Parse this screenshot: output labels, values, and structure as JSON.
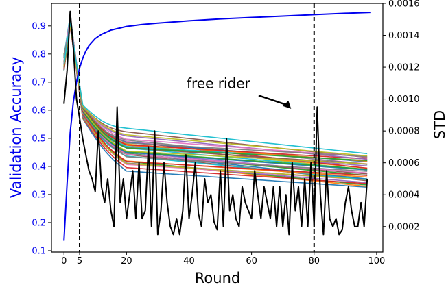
{
  "chart_data": {
    "type": "line",
    "xlabel": "Round",
    "ylabel_left": "Validation Accuracy",
    "ylabel_right": "STD",
    "xlim": [
      -4,
      102
    ],
    "ylim_left": [
      0.095,
      0.98
    ],
    "ylim_right": [
      4e-05,
      0.0016
    ],
    "x_ticks": [
      0,
      5,
      20,
      40,
      60,
      80,
      100
    ],
    "x_tick_labels": [
      "0",
      "5",
      "20",
      "40",
      "60",
      "80",
      "100"
    ],
    "y_left_ticks": [
      0.1,
      0.2,
      0.3,
      0.4,
      0.5,
      0.6,
      0.7,
      0.8,
      0.9
    ],
    "y_left_tick_labels": [
      "0.1",
      "0.2",
      "0.3",
      "0.4",
      "0.5",
      "0.6",
      "0.7",
      "0.8",
      "0.9"
    ],
    "y_right_ticks": [
      0.0002,
      0.0004,
      0.0006,
      0.0008,
      0.001,
      0.0012,
      0.0014,
      0.0016
    ],
    "y_right_tick_labels": [
      "0.0002",
      "0.0004",
      "0.0006",
      "0.0008",
      "0.0010",
      "0.0012",
      "0.0014",
      "0.0016"
    ],
    "vlines": [
      5,
      80
    ],
    "annotation": {
      "text": "free rider",
      "x": 48,
      "y": 0.0011,
      "arrow_to": [
        72,
        0.00096
      ]
    },
    "grid": false,
    "colors": {
      "validation_accuracy": "#0000ee",
      "std": "#000000",
      "left_axis_text": "#0000ee",
      "client_palette": [
        "#1f77b4",
        "#ff7f0e",
        "#2ca02c",
        "#d62728",
        "#9467bd",
        "#8c564b",
        "#e377c2",
        "#7f7f7f",
        "#bcbd22",
        "#17becf"
      ]
    },
    "series": [
      {
        "axis": "left",
        "color": "#0000ee",
        "x": [
          0,
          1,
          2,
          3,
          4,
          5,
          6,
          7,
          8,
          10,
          12,
          15,
          20,
          25,
          30,
          40,
          50,
          60,
          70,
          80,
          90,
          98
        ],
        "values": [
          0.135,
          0.34,
          0.52,
          0.63,
          0.7,
          0.75,
          0.785,
          0.81,
          0.83,
          0.855,
          0.87,
          0.885,
          0.898,
          0.905,
          0.91,
          0.918,
          0.925,
          0.93,
          0.935,
          0.94,
          0.945,
          0.948
        ]
      },
      {
        "axis": "right",
        "color": "#000000",
        "x": [
          0,
          1,
          2,
          3,
          4,
          5,
          6,
          7,
          8,
          9,
          10,
          11,
          12,
          13,
          14,
          15,
          16,
          17,
          18,
          19,
          20,
          21,
          22,
          23,
          24,
          25,
          26,
          27,
          28,
          29,
          30,
          31,
          32,
          33,
          34,
          35,
          36,
          37,
          38,
          39,
          40,
          41,
          42,
          43,
          44,
          45,
          46,
          47,
          48,
          49,
          50,
          51,
          52,
          53,
          54,
          55,
          56,
          57,
          58,
          59,
          60,
          61,
          62,
          63,
          64,
          65,
          66,
          67,
          68,
          69,
          70,
          71,
          72,
          73,
          74,
          75,
          76,
          77,
          78,
          79,
          80,
          81,
          82,
          83,
          84,
          85,
          86,
          87,
          88,
          89,
          90,
          91,
          92,
          93,
          94,
          95,
          96,
          97
        ],
        "values": [
          0.00097,
          0.00118,
          0.00155,
          0.00132,
          0.001,
          0.00088,
          0.00075,
          0.00065,
          0.00055,
          0.0005,
          0.00042,
          0.0008,
          0.00045,
          0.00035,
          0.0005,
          0.0003,
          0.0002,
          0.00095,
          0.00035,
          0.0005,
          0.00025,
          0.0004,
          0.00055,
          0.00025,
          0.0006,
          0.00025,
          0.0003,
          0.0007,
          0.0002,
          0.0008,
          0.00015,
          0.0003,
          0.0006,
          0.00035,
          0.0002,
          0.00015,
          0.00025,
          0.00015,
          0.0003,
          0.00065,
          0.00025,
          0.0004,
          0.0006,
          0.00028,
          0.0002,
          0.0005,
          0.00035,
          0.0004,
          0.00023,
          0.00018,
          0.00055,
          0.0002,
          0.00075,
          0.0003,
          0.0004,
          0.00025,
          0.0002,
          0.00045,
          0.00035,
          0.0003,
          0.00025,
          0.00055,
          0.0004,
          0.00025,
          0.00045,
          0.00035,
          0.00025,
          0.00045,
          0.0002,
          0.00045,
          0.0002,
          0.0004,
          0.00015,
          0.0006,
          0.0003,
          0.00045,
          0.0002,
          0.0005,
          0.0002,
          0.0006,
          0.0002,
          0.00095,
          0.0004,
          0.00015,
          0.00055,
          0.00025,
          0.0002,
          0.00025,
          0.00015,
          0.00018,
          0.00035,
          0.00045,
          0.0003,
          0.0002,
          0.0002,
          0.00035,
          0.0002,
          0.0005
        ]
      }
    ]
  }
}
